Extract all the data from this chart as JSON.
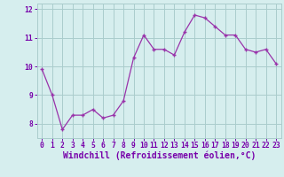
{
  "x": [
    0,
    1,
    2,
    3,
    4,
    5,
    6,
    7,
    8,
    9,
    10,
    11,
    12,
    13,
    14,
    15,
    16,
    17,
    18,
    19,
    20,
    21,
    22,
    23
  ],
  "y": [
    9.9,
    9.0,
    7.8,
    8.3,
    8.3,
    8.5,
    8.2,
    8.3,
    8.8,
    10.3,
    11.1,
    10.6,
    10.6,
    10.4,
    11.2,
    11.8,
    11.7,
    11.4,
    11.1,
    11.1,
    10.6,
    10.5,
    10.6,
    10.1
  ],
  "line_color": "#9933aa",
  "marker": "+",
  "bg_color": "#d6eeee",
  "grid_color": "#aacccc",
  "xlabel": "Windchill (Refroidissement éolien,°C)",
  "ylim": [
    7.5,
    12.2
  ],
  "xlim": [
    -0.5,
    23.5
  ],
  "yticks": [
    8,
    9,
    10,
    11,
    12
  ],
  "xticks": [
    0,
    1,
    2,
    3,
    4,
    5,
    6,
    7,
    8,
    9,
    10,
    11,
    12,
    13,
    14,
    15,
    16,
    17,
    18,
    19,
    20,
    21,
    22,
    23
  ],
  "tick_color": "#7700aa",
  "xlabel_color": "#7700aa",
  "tick_fontsize": 5.8,
  "xlabel_fontsize": 7.0,
  "xlabel_fontweight": "bold"
}
